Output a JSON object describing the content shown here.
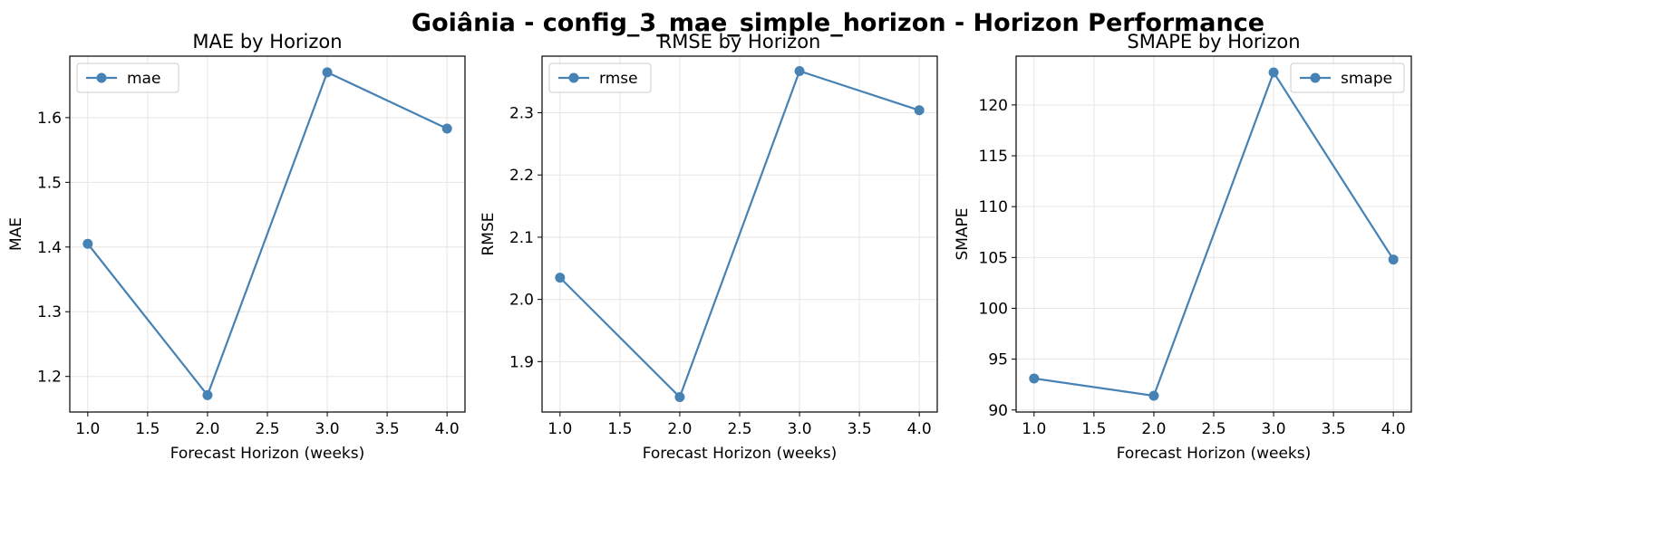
{
  "figure_title": "Goiânia - config_3_mae_simple_horizon - Horizon Performance",
  "colors": {
    "line": "#4682b4",
    "grid": "#e5e5e5",
    "axis": "#000000"
  },
  "chart_data": [
    {
      "type": "line",
      "title": "MAE by Horizon",
      "xlabel": "Forecast Horizon (weeks)",
      "ylabel": "MAE",
      "x": [
        1.0,
        2.0,
        3.0,
        4.0
      ],
      "series": [
        {
          "name": "mae",
          "values": [
            1.405,
            1.171,
            1.67,
            1.583
          ]
        }
      ],
      "xlim": [
        0.85,
        4.15
      ],
      "ylim": [
        1.145,
        1.695
      ],
      "xticks": [
        1.0,
        1.5,
        2.0,
        2.5,
        3.0,
        3.5,
        4.0
      ],
      "xtick_labels": [
        "1.0",
        "1.5",
        "2.0",
        "2.5",
        "3.0",
        "3.5",
        "4.0"
      ],
      "yticks": [
        1.2,
        1.3,
        1.4,
        1.5,
        1.6
      ],
      "ytick_labels": [
        "1.2",
        "1.3",
        "1.4",
        "1.5",
        "1.6"
      ],
      "grid": true,
      "legend": "upper-left"
    },
    {
      "type": "line",
      "title": "RMSE by Horizon",
      "xlabel": "Forecast Horizon (weeks)",
      "ylabel": "RMSE",
      "x": [
        1.0,
        2.0,
        3.0,
        4.0
      ],
      "series": [
        {
          "name": "rmse",
          "values": [
            2.035,
            1.843,
            2.367,
            2.304
          ]
        }
      ],
      "xlim": [
        0.85,
        4.15
      ],
      "ylim": [
        1.819,
        2.391
      ],
      "xticks": [
        1.0,
        1.5,
        2.0,
        2.5,
        3.0,
        3.5,
        4.0
      ],
      "xtick_labels": [
        "1.0",
        "1.5",
        "2.0",
        "2.5",
        "3.0",
        "3.5",
        "4.0"
      ],
      "yticks": [
        1.9,
        2.0,
        2.1,
        2.2,
        2.3
      ],
      "ytick_labels": [
        "1.9",
        "2.0",
        "2.1",
        "2.2",
        "2.3"
      ],
      "grid": true,
      "legend": "upper-left"
    },
    {
      "type": "line",
      "title": "SMAPE by Horizon",
      "xlabel": "Forecast Horizon (weeks)",
      "ylabel": "SMAPE",
      "x": [
        1.0,
        2.0,
        3.0,
        4.0
      ],
      "series": [
        {
          "name": "smape",
          "values": [
            93.1,
            91.4,
            123.2,
            104.8
          ]
        }
      ],
      "xlim": [
        0.85,
        4.15
      ],
      "ylim": [
        89.8,
        124.8
      ],
      "xticks": [
        1.0,
        1.5,
        2.0,
        2.5,
        3.0,
        3.5,
        4.0
      ],
      "xtick_labels": [
        "1.0",
        "1.5",
        "2.0",
        "2.5",
        "3.0",
        "3.5",
        "4.0"
      ],
      "yticks": [
        90,
        95,
        100,
        105,
        110,
        115,
        120
      ],
      "ytick_labels": [
        "90",
        "95",
        "100",
        "105",
        "110",
        "115",
        "120"
      ],
      "grid": true,
      "legend": "upper-right"
    }
  ]
}
